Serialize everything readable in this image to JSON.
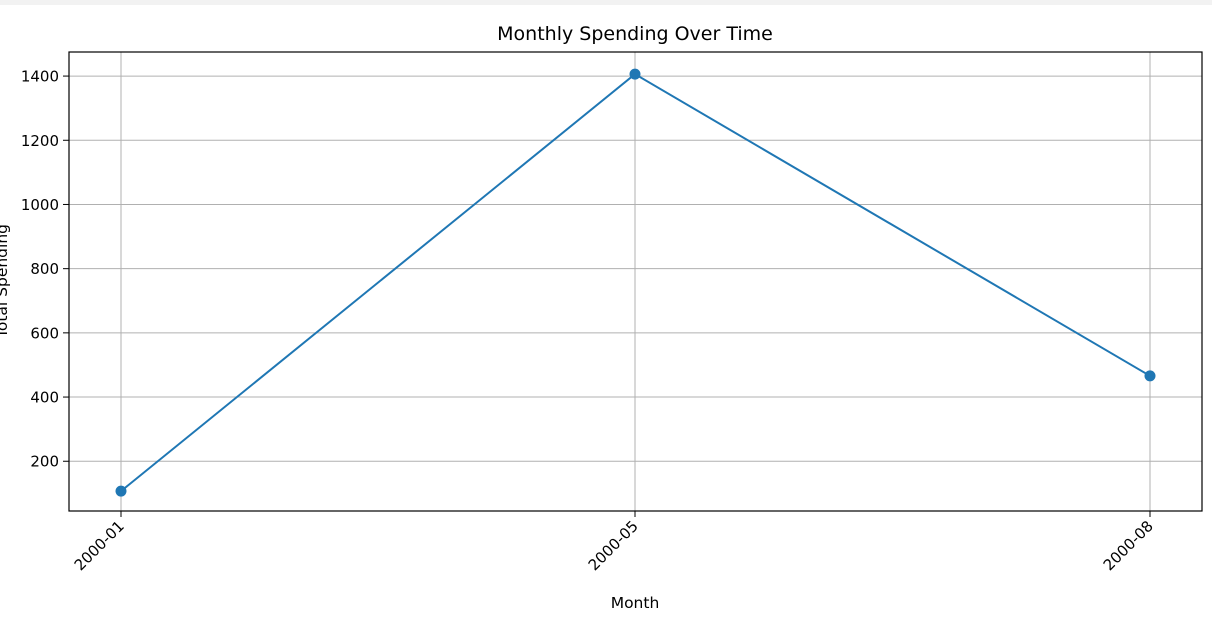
{
  "chart_data": {
    "type": "line",
    "title": "Monthly Spending Over Time",
    "xlabel": "Month",
    "ylabel": "Total Spending",
    "categories": [
      "2000-01",
      "2000-05",
      "2000-08"
    ],
    "series": [
      {
        "values": [
          107,
          1406,
          466
        ],
        "color": "#1f77b4",
        "marker": "circle"
      }
    ],
    "ylim": [
      45,
      1475
    ],
    "yticks": [
      200,
      400,
      600,
      800,
      1000,
      1200,
      1400
    ],
    "grid": true,
    "x_tick_rotation_deg": 45
  }
}
